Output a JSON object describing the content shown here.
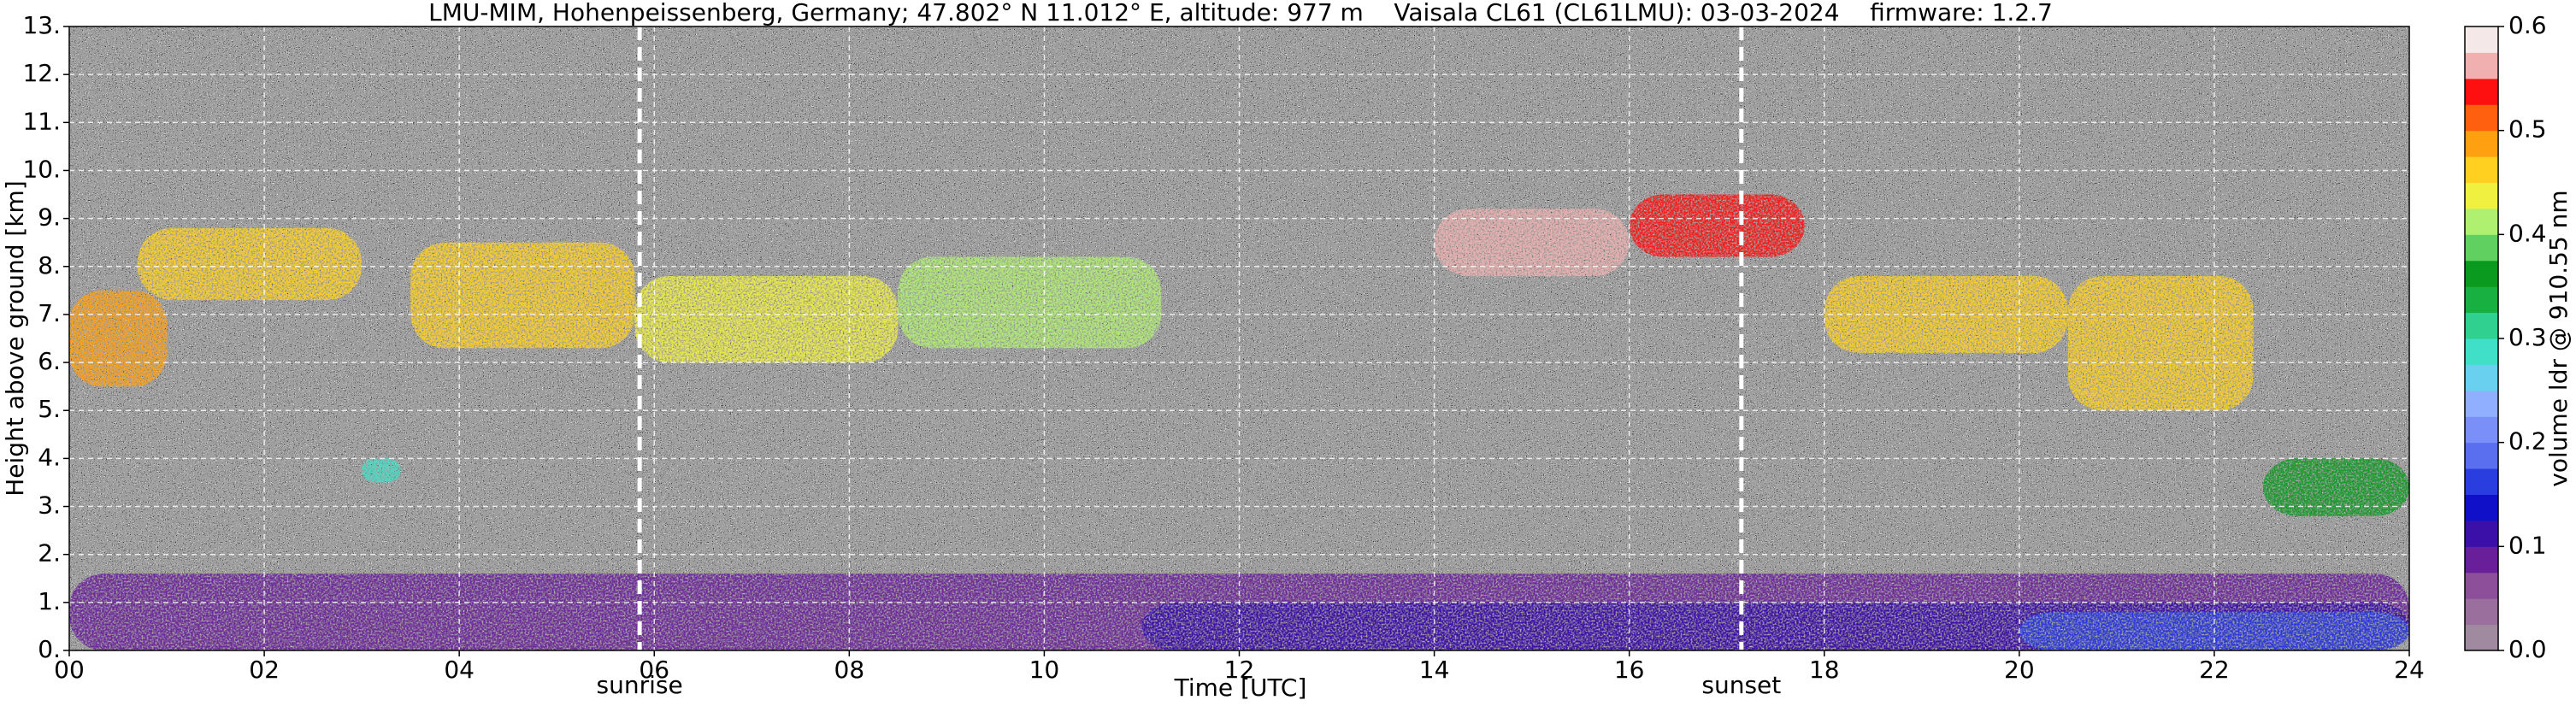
{
  "chart_data": {
    "type": "heatmap",
    "title": "LMU-MIM, Hohenpeissenberg, Germany; 47.802° N 11.012° E, altitude: 977 m    Vaisala CL61 (CL61LMU): 03-03-2024    firmware: 1.2.7",
    "x_label": "Time [UTC]",
    "y_label": "Height above ground [km]",
    "colorbar_label": "volume ldr @ 910.55 nm",
    "xlim": [
      0,
      24
    ],
    "xticks": [
      {
        "value": 0,
        "label": "00"
      },
      {
        "value": 2,
        "label": "02"
      },
      {
        "value": 4,
        "label": "04"
      },
      {
        "value": 6,
        "label": "06"
      },
      {
        "value": 8,
        "label": "08"
      },
      10,
      12,
      14,
      16,
      18,
      20,
      22,
      24
    ],
    "ylim": [
      0,
      13
    ],
    "yticks": [
      {
        "value": 0,
        "label": "0."
      },
      {
        "value": 1,
        "label": "1."
      },
      {
        "value": 2,
        "label": "2."
      },
      {
        "value": 3,
        "label": "3."
      },
      {
        "value": 4,
        "label": "4."
      },
      {
        "value": 5,
        "label": "5."
      },
      {
        "value": 6,
        "label": "6."
      },
      {
        "value": 7,
        "label": "7."
      },
      {
        "value": 8,
        "label": "8."
      },
      {
        "value": 9,
        "label": "9."
      },
      {
        "value": 10,
        "label": "10."
      },
      {
        "value": 11,
        "label": "11."
      },
      {
        "value": 12,
        "label": "12."
      },
      {
        "value": 13,
        "label": "13."
      }
    ],
    "clim": [
      0,
      0.6
    ],
    "cticks": [
      {
        "value": 0,
        "label": "0.0"
      },
      0.1,
      0.2,
      0.3,
      0.4,
      0.5,
      0.6
    ],
    "grid": true,
    "colormap": [
      "#a08aa0",
      "#9a6f9e",
      "#8d4f9a",
      "#6a1f9a",
      "#3a10a8",
      "#1010c8",
      "#2a3ee0",
      "#5a6ef0",
      "#7a90f8",
      "#90b0ff",
      "#6ad0f0",
      "#40e0c8",
      "#30d090",
      "#18b040",
      "#0a9a20",
      "#60d060",
      "#b0f070",
      "#f0f040",
      "#ffd020",
      "#ffa010",
      "#ff6010",
      "#ff1010",
      "#f0b0b0",
      "#f4e8e8"
    ],
    "regions": [
      {
        "x": [
          0,
          1.0
        ],
        "y": [
          5.5,
          7.5
        ],
        "value": 0.48
      },
      {
        "x": [
          0.7,
          3.0
        ],
        "y": [
          7.3,
          8.8
        ],
        "value": 0.47
      },
      {
        "x": [
          3.5,
          5.8
        ],
        "y": [
          6.3,
          8.5
        ],
        "value": 0.45
      },
      {
        "x": [
          5.8,
          8.5
        ],
        "y": [
          6.0,
          7.8
        ],
        "value": 0.44
      },
      {
        "x": [
          8.5,
          11.2
        ],
        "y": [
          6.3,
          8.2
        ],
        "value": 0.42
      },
      {
        "x": [
          14.0,
          16.0
        ],
        "y": [
          7.8,
          9.2
        ],
        "value": 0.55
      },
      {
        "x": [
          16.0,
          17.8
        ],
        "y": [
          8.2,
          9.5
        ],
        "value": 0.53
      },
      {
        "x": [
          18.0,
          20.5
        ],
        "y": [
          6.2,
          7.8
        ],
        "value": 0.46
      },
      {
        "x": [
          20.5,
          22.4
        ],
        "y": [
          5.0,
          7.8
        ],
        "value": 0.47
      },
      {
        "x": [
          22.5,
          24.0
        ],
        "y": [
          2.8,
          4.0
        ],
        "value": 0.37
      },
      {
        "x": [
          3.0,
          3.4
        ],
        "y": [
          3.5,
          4.0
        ],
        "value": 0.28
      },
      {
        "x": [
          0,
          24.0
        ],
        "y": [
          0,
          1.6
        ],
        "value": 0.08
      },
      {
        "x": [
          11.0,
          24.0
        ],
        "y": [
          0,
          1.0
        ],
        "value": 0.12
      },
      {
        "x": [
          20.0,
          24.0
        ],
        "y": [
          0,
          0.8
        ],
        "value": 0.16
      }
    ],
    "annotations": [
      {
        "x": 5.85,
        "text": "sunrise"
      },
      {
        "x": 17.15,
        "text": "sunset"
      }
    ]
  }
}
